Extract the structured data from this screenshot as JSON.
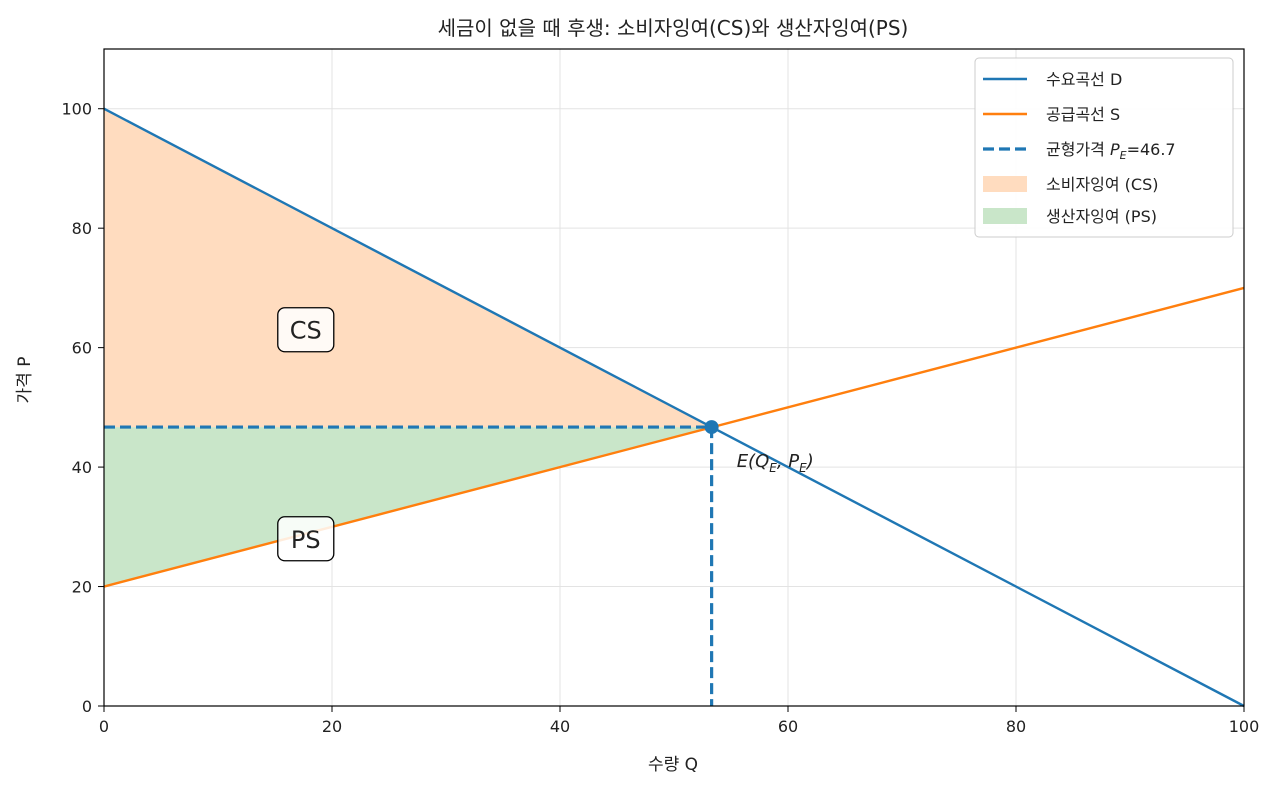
{
  "chart_data": {
    "type": "line",
    "title": "세금이 없을 때 후생: 소비자잉여(CS)와 생산자잉여(PS)",
    "xlabel": "수량 Q",
    "ylabel": "가격 P",
    "xlim": [
      0,
      100
    ],
    "ylim": [
      0,
      110
    ],
    "xticks": [
      0,
      20,
      40,
      60,
      80,
      100
    ],
    "yticks": [
      0,
      20,
      40,
      60,
      80,
      100
    ],
    "xtick_labels": [
      "0",
      "20",
      "40",
      "60",
      "80",
      "100"
    ],
    "ytick_labels": [
      "0",
      "20",
      "40",
      "60",
      "80",
      "100"
    ],
    "grid": true,
    "legend_position": "top-right",
    "series": [
      {
        "name": "수요곡선 D",
        "kind": "line",
        "color": "#1f77b4",
        "x": [
          0,
          100
        ],
        "y": [
          100,
          0
        ]
      },
      {
        "name": "공급곡선 S",
        "kind": "line",
        "color": "#ff7f0e",
        "x": [
          0,
          100
        ],
        "y": [
          20,
          70
        ]
      },
      {
        "name_prefix": "균형가격 ",
        "name_math": "P",
        "name_sub": "E",
        "name_suffix": "=46.7",
        "kind": "dashed",
        "color": "#1f77b4",
        "x": [
          0,
          53.3
        ],
        "y": [
          46.7,
          46.7
        ]
      },
      {
        "name": "소비자잉여 (CS)",
        "kind": "area",
        "color": "#ffdcbf",
        "x": [
          0,
          53.3,
          0
        ],
        "y": [
          100,
          46.7,
          46.7
        ]
      },
      {
        "name": "생산자잉여 (PS)",
        "kind": "area",
        "color": "#c9e6c9",
        "x": [
          0,
          53.3,
          0
        ],
        "y": [
          20,
          46.7,
          46.7
        ]
      }
    ],
    "equilibrium": {
      "x": 53.3,
      "y": 46.7
    },
    "annotations": [
      {
        "text": "CS",
        "x": 17.7,
        "y": 63
      },
      {
        "text": "PS",
        "x": 17.7,
        "y": 28
      }
    ],
    "point_label": {
      "prefix": "E(Q",
      "sub1": "E",
      "mid": ", P",
      "sub2": "E",
      "suffix": ")",
      "x": 55.5,
      "y": 41
    }
  }
}
